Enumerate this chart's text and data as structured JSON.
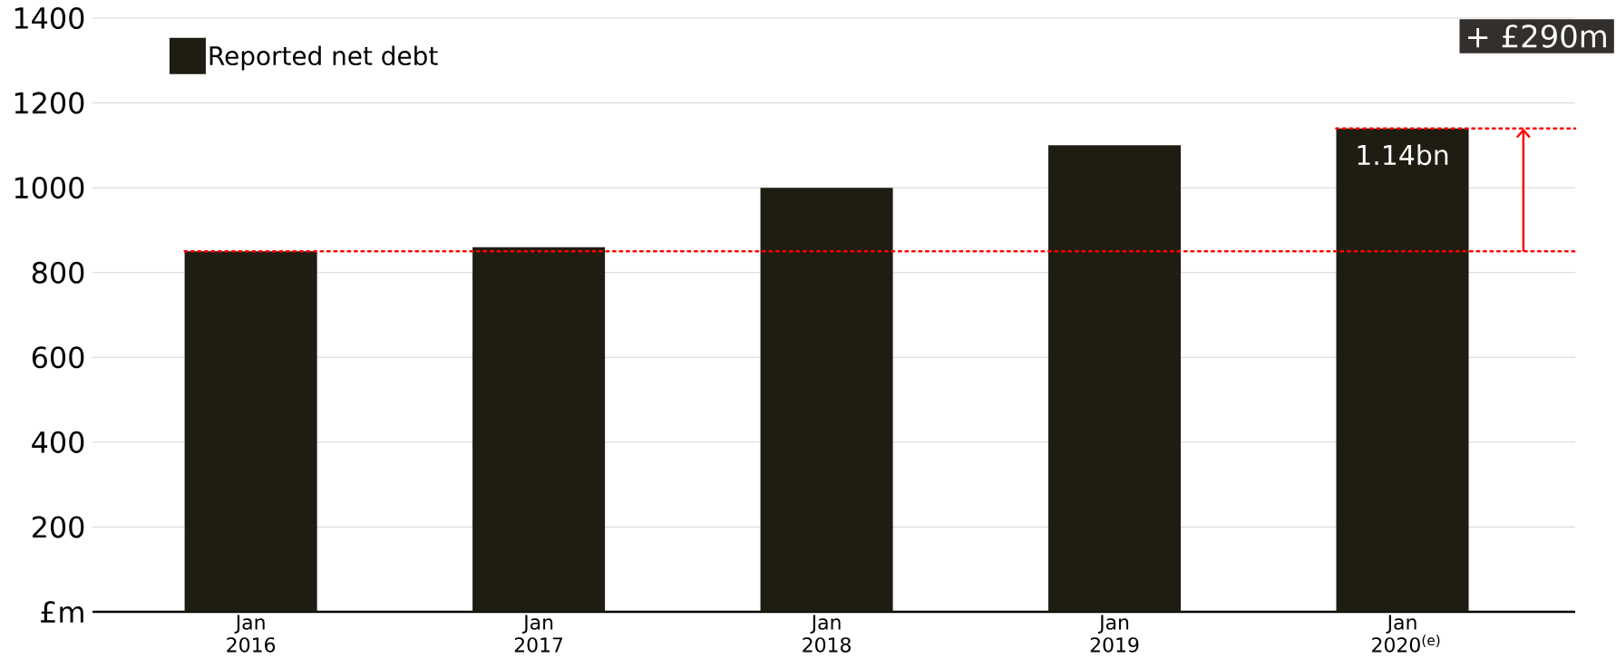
{
  "chart_data": {
    "type": "bar",
    "categories": [
      "Jan 2016",
      "Jan 2017",
      "Jan 2018",
      "Jan 2019",
      "Jan 2020$^{(e)}$"
    ],
    "series": [
      {
        "name": "Reported net debt",
        "color": "#1f1d12",
        "values": [
          850,
          860,
          1000,
          1100,
          1140
        ]
      }
    ],
    "ylim": [
      0,
      1400
    ],
    "yticks": [
      {
        "value": 0,
        "label": "£m"
      },
      200,
      400,
      600,
      800,
      1000,
      1200,
      1400
    ],
    "grid": "y",
    "legend": "top left",
    "ref_lines": [
      {
        "axis": "y",
        "value": 850,
        "color": "#ff0000",
        "line_style": "dotted"
      },
      {
        "axis": "y",
        "value": 1140,
        "color": "#ff0000",
        "line_style": "dotted"
      }
    ],
    "annotations": [
      {
        "text": "1.14bn",
        "x": "Jan 2020$^{(e)}$",
        "y": 1140
      },
      "+ £290m"
    ]
  }
}
